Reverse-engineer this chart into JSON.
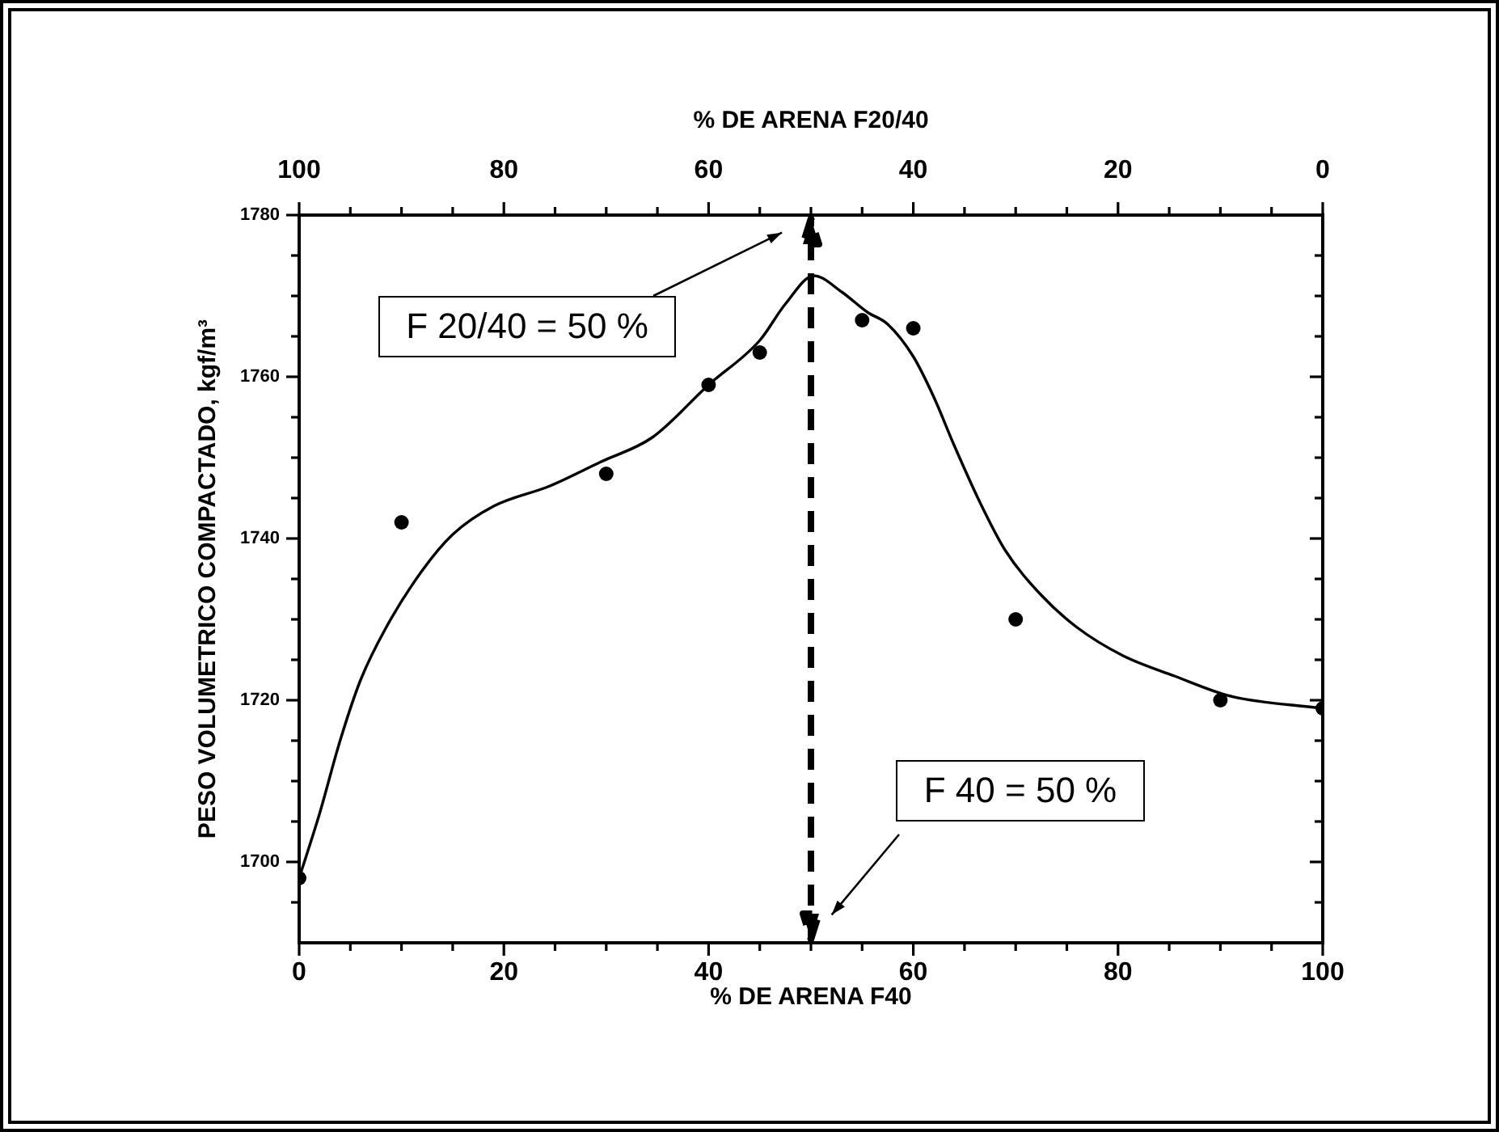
{
  "chart_data": {
    "type": "scatter",
    "xlabel": "% DE ARENA F40",
    "x2label": "% DE ARENA F20/40",
    "ylabel": "PESO VOLUMETRICO COMPACTADO, kgf/m³",
    "xlim": [
      0,
      100
    ],
    "xticks": [
      0,
      {
        "value": 5,
        "label": null
      },
      {
        "value": 10,
        "label": null
      },
      {
        "value": 15,
        "label": null
      },
      20,
      {
        "value": 25,
        "label": null
      },
      {
        "value": 30,
        "label": null
      },
      {
        "value": 35,
        "label": null
      },
      40,
      {
        "value": 45,
        "label": null
      },
      {
        "value": 50,
        "label": null
      },
      {
        "value": 55,
        "label": null
      },
      60,
      {
        "value": 65,
        "label": null
      },
      {
        "value": 70,
        "label": null
      },
      {
        "value": 75,
        "label": null
      },
      80,
      {
        "value": 85,
        "label": null
      },
      {
        "value": 90,
        "label": null
      },
      {
        "value": 95,
        "label": null
      },
      100
    ],
    "x2lim": [
      100,
      0
    ],
    "x2ticks": [
      100,
      {
        "value": 95,
        "label": null
      },
      {
        "value": 90,
        "label": null
      },
      {
        "value": 85,
        "label": null
      },
      80,
      {
        "value": 75,
        "label": null
      },
      {
        "value": 70,
        "label": null
      },
      {
        "value": 65,
        "label": null
      },
      60,
      {
        "value": 55,
        "label": null
      },
      {
        "value": 50,
        "label": null
      },
      {
        "value": 45,
        "label": null
      },
      40,
      {
        "value": 35,
        "label": null
      },
      {
        "value": 30,
        "label": null
      },
      {
        "value": 25,
        "label": null
      },
      20,
      {
        "value": 15,
        "label": null
      },
      {
        "value": 10,
        "label": null
      },
      {
        "value": 5,
        "label": null
      },
      0
    ],
    "ylim": [
      1690,
      1780
    ],
    "yticks": [
      {
        "value": 1695,
        "label": null
      },
      1700,
      {
        "value": 1705,
        "label": null
      },
      {
        "value": 1710,
        "label": null
      },
      {
        "value": 1715,
        "label": null
      },
      1720,
      {
        "value": 1725,
        "label": null
      },
      {
        "value": 1730,
        "label": null
      },
      {
        "value": 1735,
        "label": null
      },
      1740,
      {
        "value": 1745,
        "label": null
      },
      {
        "value": 1750,
        "label": null
      },
      {
        "value": 1755,
        "label": null
      },
      1760,
      {
        "value": 1765,
        "label": null
      },
      {
        "value": 1770,
        "label": null
      },
      {
        "value": 1775,
        "label": null
      },
      1780
    ],
    "series": [
      {
        "marker": "circle",
        "color": "#000000",
        "x": [
          0,
          10,
          30,
          40,
          45,
          55,
          60,
          70,
          90,
          100
        ],
        "values": [
          1698,
          1742,
          1748,
          1759,
          1763,
          1767,
          1766,
          1730,
          1720,
          1719
        ]
      },
      {
        "type": "line",
        "marker": "none",
        "line_style": "solid",
        "color": "#000000",
        "x": [
          0,
          2,
          4,
          6,
          8.5,
          12,
          15,
          19,
          24.5,
          29.5,
          34.5,
          40,
          45,
          47.5,
          50.3,
          53,
          55.5,
          57.5,
          60,
          62,
          64,
          66.5,
          69,
          72.5,
          76,
          80.5,
          85.5,
          91,
          100
        ],
        "values": [
          1698,
          1706,
          1715,
          1722.5,
          1729,
          1736,
          1740.5,
          1744,
          1746.5,
          1749.5,
          1752.5,
          1759,
          1764.5,
          1769,
          1772.5,
          1770.5,
          1768,
          1766.5,
          1762.5,
          1757.5,
          1751.5,
          1744.5,
          1738.5,
          1733,
          1729,
          1725.5,
          1723,
          1720.5,
          1719
        ]
      }
    ],
    "ref_lines": [
      {
        "axis": "x",
        "value": 50,
        "line_style": "dashed"
      }
    ],
    "annotations": [
      "F 20/40 = 50 %",
      "F 40 = 50 %"
    ]
  }
}
